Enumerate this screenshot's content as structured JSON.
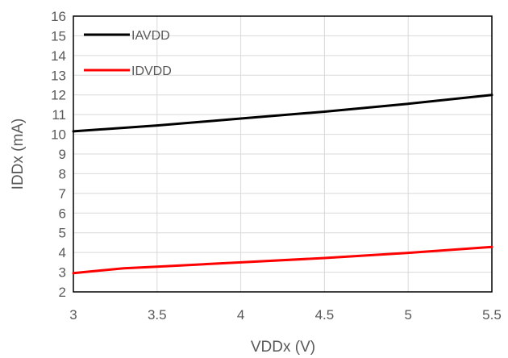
{
  "chart_data": {
    "type": "line",
    "title": "",
    "xlabel": "VDDx (V)",
    "ylabel": "IDDx (mA)",
    "xlim": [
      3,
      5.5
    ],
    "ylim": [
      2,
      16
    ],
    "xticks": [
      "3",
      "3.5",
      "4",
      "4.5",
      "5",
      "5.5"
    ],
    "yticks": [
      "2",
      "3",
      "4",
      "5",
      "6",
      "7",
      "8",
      "9",
      "10",
      "11",
      "12",
      "13",
      "14",
      "15",
      "16"
    ],
    "grid": true,
    "legend_position": "top-left",
    "series": [
      {
        "name": "IAVDD",
        "color": "#000000",
        "x": [
          3.0,
          3.5,
          4.0,
          4.5,
          5.0,
          5.5
        ],
        "y": [
          10.15,
          10.45,
          10.8,
          11.15,
          11.55,
          12.0
        ]
      },
      {
        "name": "IDVDD",
        "color": "#ff0000",
        "x": [
          3.0,
          3.3,
          3.5,
          4.0,
          4.5,
          5.0,
          5.5
        ],
        "y": [
          2.95,
          3.2,
          3.28,
          3.5,
          3.72,
          3.98,
          4.28
        ]
      }
    ]
  }
}
